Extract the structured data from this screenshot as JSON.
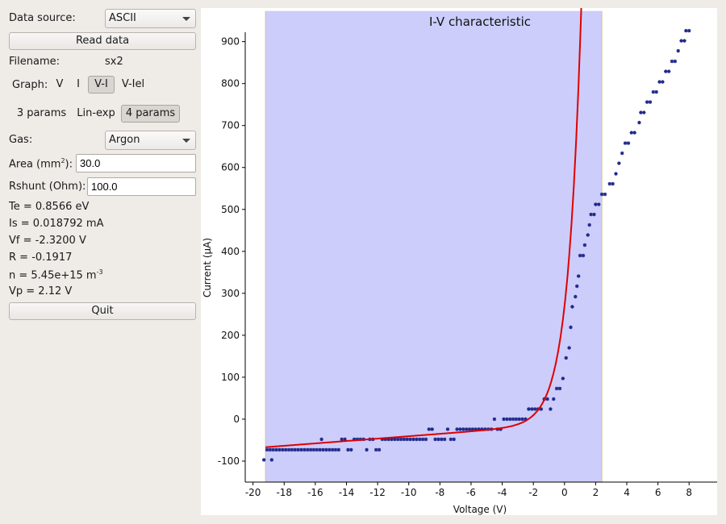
{
  "panel": {
    "data_source_label": "Data source:",
    "data_source_value": "ASCII",
    "read_button": "Read data",
    "filename_label": "Filename:",
    "filename_value": "sx2",
    "graph_label": "Graph:",
    "graph_options": [
      "V",
      "I",
      "V-I",
      "V-Iel"
    ],
    "graph_selected": "V-I",
    "fit_options": [
      "3 params",
      "Lin-exp",
      "4 params"
    ],
    "fit_selected": "4 params",
    "gas_label": "Gas:",
    "gas_value": "Argon",
    "area_label_prefix": "Area (mm",
    "area_label_sup": "2",
    "area_label_suffix": "):",
    "area_value": "30.0",
    "rshunt_label": "Rshunt (Ohm):",
    "rshunt_value": "100.0",
    "results": {
      "te": "Te = 0.8566 eV",
      "is": "Is = 0.018792 mA",
      "vf": "Vf = -2.3200 V",
      "r": "R = -0.1917",
      "n_prefix": "n = 5.45e+15 m",
      "n_sup": "-3",
      "vp": "Vp = 2.12 V"
    },
    "quit_button": "Quit"
  },
  "chart_data": {
    "type": "scatter",
    "title": "I-V characteristic",
    "xlabel": "Voltage (V)",
    "ylabel": "Current (µA)",
    "xlim": [
      -20.5,
      9.8
    ],
    "ylim": [
      -150,
      980
    ],
    "xticks": [
      -20,
      -18,
      -16,
      -14,
      -12,
      -10,
      -8,
      -6,
      -4,
      -2,
      0,
      2,
      4,
      6,
      8
    ],
    "yticks": [
      -100,
      0,
      100,
      200,
      300,
      400,
      500,
      600,
      700,
      800,
      900
    ],
    "shaded_region": {
      "x0": -19.2,
      "x1": 2.4,
      "color": "#cccdfb"
    },
    "marker_color": "#1f2a8a",
    "fit_color": "#e00000",
    "points": [
      [
        -19.3,
        -97
      ],
      [
        -19.1,
        -73
      ],
      [
        -18.9,
        -73
      ],
      [
        -18.8,
        -97
      ],
      [
        -18.7,
        -73
      ],
      [
        -18.5,
        -73
      ],
      [
        -18.3,
        -73
      ],
      [
        -18.1,
        -73
      ],
      [
        -17.9,
        -73
      ],
      [
        -17.7,
        -73
      ],
      [
        -17.5,
        -73
      ],
      [
        -17.3,
        -73
      ],
      [
        -17.1,
        -73
      ],
      [
        -16.9,
        -73
      ],
      [
        -16.7,
        -73
      ],
      [
        -16.5,
        -73
      ],
      [
        -16.3,
        -73
      ],
      [
        -16.1,
        -73
      ],
      [
        -15.9,
        -73
      ],
      [
        -15.7,
        -73
      ],
      [
        -15.6,
        -48
      ],
      [
        -15.5,
        -73
      ],
      [
        -15.3,
        -73
      ],
      [
        -15.1,
        -73
      ],
      [
        -14.9,
        -73
      ],
      [
        -14.7,
        -73
      ],
      [
        -14.5,
        -73
      ],
      [
        -14.3,
        -48
      ],
      [
        -14.1,
        -48
      ],
      [
        -13.9,
        -73
      ],
      [
        -13.7,
        -73
      ],
      [
        -13.5,
        -48
      ],
      [
        -13.3,
        -48
      ],
      [
        -13.1,
        -48
      ],
      [
        -12.9,
        -48
      ],
      [
        -12.7,
        -73
      ],
      [
        -12.5,
        -48
      ],
      [
        -12.3,
        -48
      ],
      [
        -12.1,
        -73
      ],
      [
        -11.9,
        -73
      ],
      [
        -11.7,
        -48
      ],
      [
        -11.5,
        -48
      ],
      [
        -11.3,
        -48
      ],
      [
        -11.1,
        -48
      ],
      [
        -10.9,
        -48
      ],
      [
        -10.7,
        -48
      ],
      [
        -10.5,
        -48
      ],
      [
        -10.3,
        -48
      ],
      [
        -10.1,
        -48
      ],
      [
        -9.9,
        -48
      ],
      [
        -9.7,
        -48
      ],
      [
        -9.5,
        -48
      ],
      [
        -9.3,
        -48
      ],
      [
        -9.1,
        -48
      ],
      [
        -8.9,
        -48
      ],
      [
        -8.7,
        -24
      ],
      [
        -8.5,
        -24
      ],
      [
        -8.3,
        -48
      ],
      [
        -8.1,
        -48
      ],
      [
        -7.9,
        -48
      ],
      [
        -7.7,
        -48
      ],
      [
        -7.5,
        -24
      ],
      [
        -7.3,
        -48
      ],
      [
        -7.1,
        -48
      ],
      [
        -6.9,
        -24
      ],
      [
        -6.7,
        -24
      ],
      [
        -6.5,
        -24
      ],
      [
        -6.3,
        -24
      ],
      [
        -6.1,
        -24
      ],
      [
        -5.9,
        -24
      ],
      [
        -5.7,
        -24
      ],
      [
        -5.5,
        -24
      ],
      [
        -5.3,
        -24
      ],
      [
        -5.1,
        -24
      ],
      [
        -4.9,
        -24
      ],
      [
        -4.7,
        -24
      ],
      [
        -4.5,
        0
      ],
      [
        -4.3,
        -24
      ],
      [
        -4.1,
        -24
      ],
      [
        -3.9,
        0
      ],
      [
        -3.7,
        0
      ],
      [
        -3.5,
        0
      ],
      [
        -3.3,
        0
      ],
      [
        -3.1,
        0
      ],
      [
        -2.9,
        0
      ],
      [
        -2.7,
        0
      ],
      [
        -2.5,
        0
      ],
      [
        -2.3,
        24
      ],
      [
        -2.1,
        24
      ],
      [
        -1.9,
        24
      ],
      [
        -1.7,
        24
      ],
      [
        -1.5,
        24
      ],
      [
        -1.3,
        48
      ],
      [
        -1.1,
        48
      ],
      [
        -0.9,
        24
      ],
      [
        -0.7,
        48
      ],
      [
        -0.5,
        73
      ],
      [
        -0.3,
        73
      ],
      [
        -0.1,
        97
      ],
      [
        0.1,
        146
      ],
      [
        0.3,
        170
      ],
      [
        0.4,
        219
      ],
      [
        0.5,
        268
      ],
      [
        0.7,
        292
      ],
      [
        0.8,
        317
      ],
      [
        0.9,
        341
      ],
      [
        1.0,
        390
      ],
      [
        1.2,
        390
      ],
      [
        1.3,
        415
      ],
      [
        1.5,
        439
      ],
      [
        1.6,
        463
      ],
      [
        1.7,
        488
      ],
      [
        1.9,
        488
      ],
      [
        2.0,
        512
      ],
      [
        2.2,
        512
      ],
      [
        2.4,
        536
      ],
      [
        2.6,
        536
      ],
      [
        2.9,
        561
      ],
      [
        3.1,
        561
      ],
      [
        3.3,
        585
      ],
      [
        3.5,
        610
      ],
      [
        3.7,
        634
      ],
      [
        3.9,
        658
      ],
      [
        4.1,
        658
      ],
      [
        4.3,
        683
      ],
      [
        4.5,
        683
      ],
      [
        4.8,
        707
      ],
      [
        4.9,
        731
      ],
      [
        5.1,
        731
      ],
      [
        5.3,
        756
      ],
      [
        5.5,
        756
      ],
      [
        5.7,
        780
      ],
      [
        5.9,
        780
      ],
      [
        6.1,
        804
      ],
      [
        6.3,
        804
      ],
      [
        6.5,
        829
      ],
      [
        6.7,
        829
      ],
      [
        6.9,
        853
      ],
      [
        7.1,
        853
      ],
      [
        7.3,
        878
      ],
      [
        7.5,
        902
      ],
      [
        7.7,
        902
      ],
      [
        7.8,
        926
      ],
      [
        8.0,
        926
      ]
    ]
  }
}
